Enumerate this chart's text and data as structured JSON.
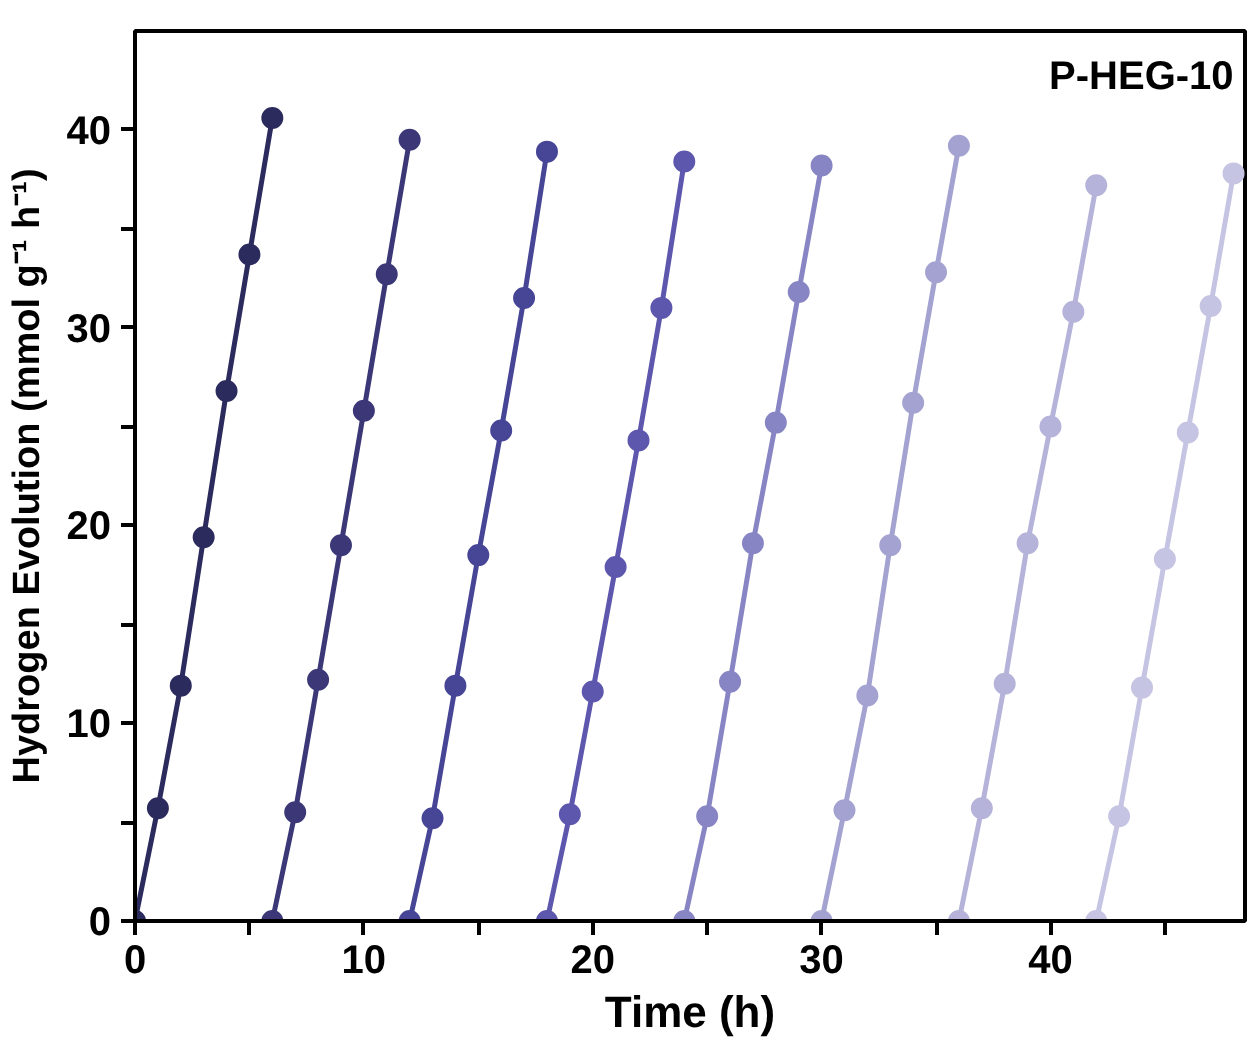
{
  "chart_data": {
    "type": "line",
    "xlabel": "Time (h)",
    "ylabel": "Hydrogen Evolution (mmol g⁻¹ h⁻¹)",
    "annotations": [
      "P-HEG-10"
    ],
    "xlim": [
      0,
      48.5
    ],
    "ylim": [
      0,
      45
    ],
    "xticks": [
      0,
      {
        "value": 5,
        "label": null
      },
      10,
      {
        "value": 15,
        "label": null
      },
      20,
      {
        "value": 25,
        "label": null
      },
      30,
      {
        "value": 35,
        "label": null
      },
      40,
      {
        "value": 45,
        "label": null
      }
    ],
    "yticks": [
      0,
      {
        "value": 5,
        "label": null
      },
      10,
      {
        "value": 15,
        "label": null
      },
      20,
      {
        "value": 25,
        "label": null
      },
      30,
      {
        "value": 35,
        "label": null
      },
      40
    ],
    "grid": false,
    "marker": "circle",
    "line_style": "solid",
    "series": [
      {
        "color": "#2c2b5e",
        "x": [
          0,
          1,
          2,
          3,
          4,
          5,
          6
        ],
        "values": [
          0,
          5.7,
          11.9,
          19.4,
          26.8,
          33.7,
          40.6
        ]
      },
      {
        "color": "#3c3878",
        "x": [
          6,
          7,
          8,
          9,
          10,
          11,
          12
        ],
        "values": [
          0,
          5.5,
          12.2,
          19.0,
          25.8,
          32.7,
          39.5
        ]
      },
      {
        "color": "#464596",
        "x": [
          12,
          13,
          14,
          15,
          16,
          17,
          18
        ],
        "values": [
          0,
          5.2,
          11.9,
          18.5,
          24.8,
          31.5,
          38.9
        ]
      },
      {
        "color": "#5d57ad",
        "x": [
          18,
          19,
          20,
          21,
          22,
          23,
          24
        ],
        "values": [
          0,
          5.4,
          11.6,
          17.9,
          24.3,
          31.0,
          38.4
        ]
      },
      {
        "color": "#8885c4",
        "x": [
          24,
          25,
          26,
          27,
          28,
          29,
          30
        ],
        "values": [
          0,
          5.3,
          12.1,
          19.1,
          25.2,
          31.8,
          38.2
        ]
      },
      {
        "color": "#a3a2d1",
        "x": [
          30,
          31,
          32,
          33,
          34,
          35,
          36
        ],
        "values": [
          0,
          5.6,
          11.4,
          19.0,
          26.2,
          32.8,
          39.2
        ]
      },
      {
        "color": "#b5b3d9",
        "x": [
          36,
          37,
          38,
          39,
          40,
          41,
          42
        ],
        "values": [
          0,
          5.7,
          12.0,
          19.1,
          25.0,
          30.8,
          37.2
        ]
      },
      {
        "color": "#c6c4e3",
        "x": [
          42,
          43,
          44,
          45,
          46,
          47,
          48
        ],
        "values": [
          0,
          5.3,
          11.8,
          18.3,
          24.7,
          31.1,
          37.8
        ]
      }
    ]
  }
}
